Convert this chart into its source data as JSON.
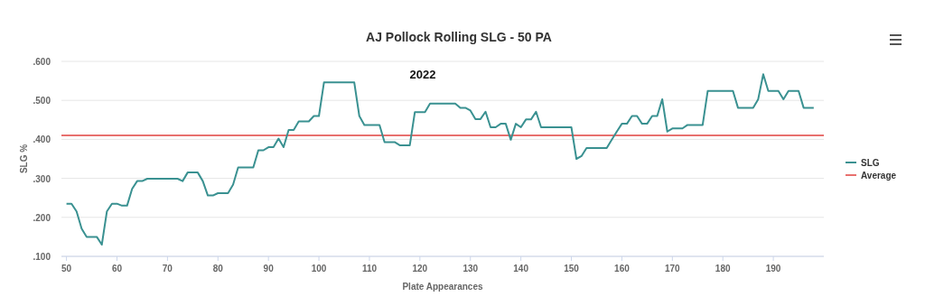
{
  "chart_data": {
    "type": "line",
    "title": "AJ Pollock Rolling SLG - 50 PA",
    "xlabel": "Plate Appearances",
    "ylabel": "SLG %",
    "annotations": [
      "2022"
    ],
    "x": [
      50,
      51,
      52,
      53,
      54,
      55,
      56,
      57,
      58,
      59,
      60,
      61,
      62,
      63,
      64,
      65,
      66,
      67,
      68,
      69,
      70,
      71,
      72,
      73,
      74,
      75,
      76,
      77,
      78,
      79,
      80,
      81,
      82,
      83,
      84,
      85,
      86,
      87,
      88,
      89,
      90,
      91,
      92,
      93,
      94,
      95,
      96,
      97,
      98,
      99,
      100,
      101,
      102,
      103,
      104,
      105,
      106,
      107,
      108,
      109,
      110,
      111,
      112,
      113,
      114,
      115,
      116,
      117,
      118,
      119,
      120,
      121,
      122,
      123,
      124,
      125,
      126,
      127,
      128,
      129,
      130,
      131,
      132,
      133,
      134,
      135,
      136,
      137,
      138,
      139,
      140,
      141,
      142,
      143,
      144,
      145,
      146,
      147,
      148,
      149,
      150,
      151,
      152,
      153,
      154,
      155,
      156,
      157,
      158,
      159,
      160,
      161,
      162,
      163,
      164,
      165,
      166,
      167,
      168,
      169,
      170,
      171,
      172,
      173,
      174,
      175,
      176,
      177,
      178,
      179,
      180,
      181,
      182,
      183,
      184,
      185,
      186,
      187,
      188,
      189,
      190,
      191,
      192,
      193,
      194,
      195,
      196,
      197,
      198
    ],
    "series": [
      {
        "name": "SLG",
        "color": "#3a9191",
        "values": [
          0.235,
          0.235,
          0.215,
          0.171,
          0.15,
          0.15,
          0.15,
          0.13,
          0.215,
          0.235,
          0.235,
          0.23,
          0.23,
          0.273,
          0.293,
          0.293,
          0.299,
          0.299,
          0.299,
          0.299,
          0.299,
          0.299,
          0.299,
          0.293,
          0.315,
          0.315,
          0.315,
          0.293,
          0.256,
          0.256,
          0.262,
          0.262,
          0.262,
          0.284,
          0.328,
          0.328,
          0.328,
          0.328,
          0.372,
          0.372,
          0.38,
          0.38,
          0.402,
          0.38,
          0.424,
          0.424,
          0.446,
          0.446,
          0.446,
          0.46,
          0.46,
          0.546,
          0.546,
          0.546,
          0.546,
          0.546,
          0.546,
          0.546,
          0.46,
          0.437,
          0.437,
          0.437,
          0.437,
          0.393,
          0.393,
          0.393,
          0.385,
          0.385,
          0.385,
          0.47,
          0.47,
          0.47,
          0.492,
          0.492,
          0.492,
          0.492,
          0.492,
          0.492,
          0.481,
          0.481,
          0.474,
          0.452,
          0.452,
          0.471,
          0.431,
          0.431,
          0.44,
          0.44,
          0.399,
          0.44,
          0.431,
          0.451,
          0.451,
          0.471,
          0.431,
          0.431,
          0.431,
          0.431,
          0.431,
          0.431,
          0.431,
          0.35,
          0.357,
          0.378,
          0.378,
          0.378,
          0.378,
          0.378,
          0.399,
          0.42,
          0.44,
          0.44,
          0.46,
          0.46,
          0.44,
          0.44,
          0.46,
          0.46,
          0.503,
          0.42,
          0.428,
          0.428,
          0.428,
          0.437,
          0.437,
          0.437,
          0.437,
          0.524,
          0.524,
          0.524,
          0.524,
          0.524,
          0.524,
          0.481,
          0.481,
          0.481,
          0.481,
          0.503,
          0.567,
          0.524,
          0.524,
          0.524,
          0.503,
          0.524,
          0.524,
          0.524,
          0.481,
          0.481,
          0.481
        ]
      }
    ],
    "ref_lines": [
      {
        "axis": "y",
        "value": 0.41,
        "label": "Average",
        "color": "#e8706e"
      }
    ],
    "xlim": [
      49,
      200
    ],
    "xticks": [
      50,
      60,
      70,
      80,
      90,
      100,
      110,
      120,
      130,
      140,
      150,
      160,
      170,
      180,
      190
    ],
    "ylim": [
      0.1,
      0.6
    ],
    "yticks": [
      {
        "value": 0.1,
        "label": ".100"
      },
      {
        "value": 0.2,
        "label": ".200"
      },
      {
        "value": 0.3,
        "label": ".300"
      },
      {
        "value": 0.4,
        "label": ".400"
      },
      {
        "value": 0.5,
        "label": ".500"
      },
      {
        "value": 0.6,
        "label": ".600"
      }
    ],
    "grid": "y",
    "legend": "right",
    "marker": "none",
    "line_style": "solid"
  }
}
